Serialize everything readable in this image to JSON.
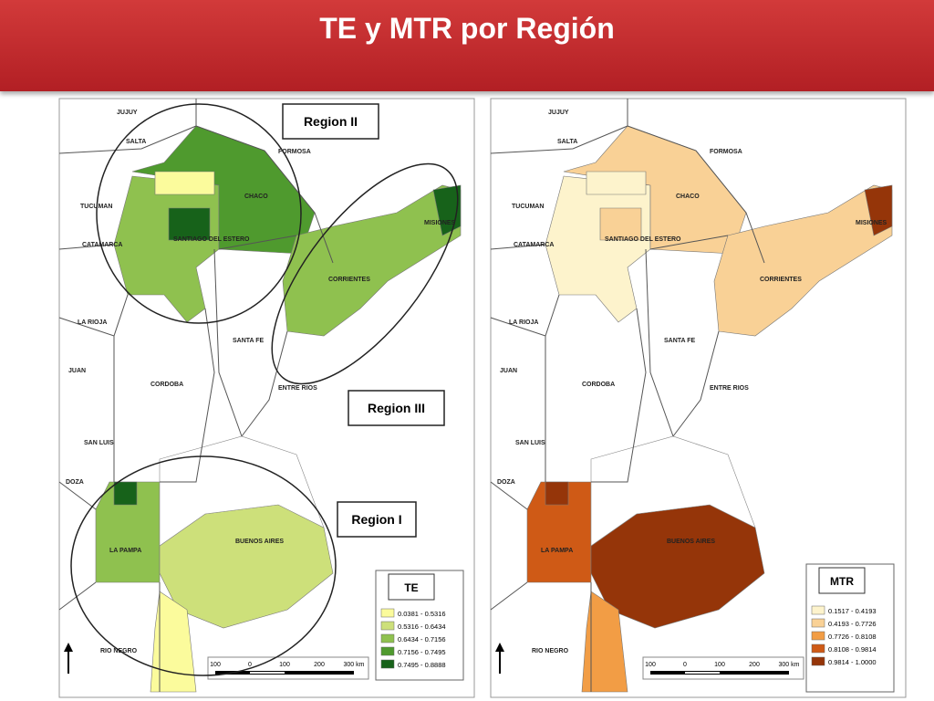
{
  "header": {
    "title": "TE y MTR por Región"
  },
  "maps": [
    {
      "legend": {
        "title": "TE",
        "classes": [
          {
            "label": "0.0381 - 0.5316",
            "color": "#fbfb9c"
          },
          {
            "label": "0.5316 - 0.6434",
            "color": "#cde07a"
          },
          {
            "label": "0.6434 - 0.7156",
            "color": "#8fc14f"
          },
          {
            "label": "0.7156 - 0.7495",
            "color": "#4f9a2e"
          },
          {
            "label": "0.7495 - 0.8888",
            "color": "#17621a"
          }
        ]
      },
      "regions": [
        "Region II",
        "Region III",
        "Region I"
      ],
      "places": [
        "JUJUY",
        "SALTA",
        "FORMOSA",
        "CHACO",
        "TUCUMAN",
        "CATAMARCA",
        "SANTIAGO DEL ESTERO",
        "MISIONES",
        "CORRIENTES",
        "LA RIOJA",
        "SANTA FE",
        "CORDOBA",
        "ENTRE RIOS",
        "JUAN",
        "SAN LUIS",
        "DOZA",
        "LA PAMPA",
        "BUENOS AIRES",
        "RIO NEGRO"
      ],
      "scale": [
        "100",
        "0",
        "100",
        "200",
        "300 km"
      ]
    },
    {
      "legend": {
        "title": "MTR",
        "classes": [
          {
            "label": "0.1517 - 0.4193",
            "color": "#fdf3cc"
          },
          {
            "label": "0.4193 - 0.7726",
            "color": "#f9d196"
          },
          {
            "label": "0.7726 - 0.8108",
            "color": "#f29d45"
          },
          {
            "label": "0.8108 - 0.9814",
            "color": "#cf5a16"
          },
          {
            "label": "0.9814 - 1.0000",
            "color": "#953509"
          }
        ]
      },
      "places": [
        "JUJUY",
        "SALTA",
        "FORMOSA",
        "CHACO",
        "TUCUMAN",
        "CATAMARCA",
        "SANTIAGO DEL ESTERO",
        "MISIONES",
        "CORRIENTES",
        "LA RIOJA",
        "SANTA FE",
        "CORDOBA",
        "ENTRE RIOS",
        "JUAN",
        "SAN LUIS",
        "DOZA",
        "LA PAMPA",
        "BUENOS AIRES",
        "RIO NEGRO"
      ],
      "scale": [
        "100",
        "0",
        "100",
        "200",
        "300 km"
      ]
    }
  ]
}
